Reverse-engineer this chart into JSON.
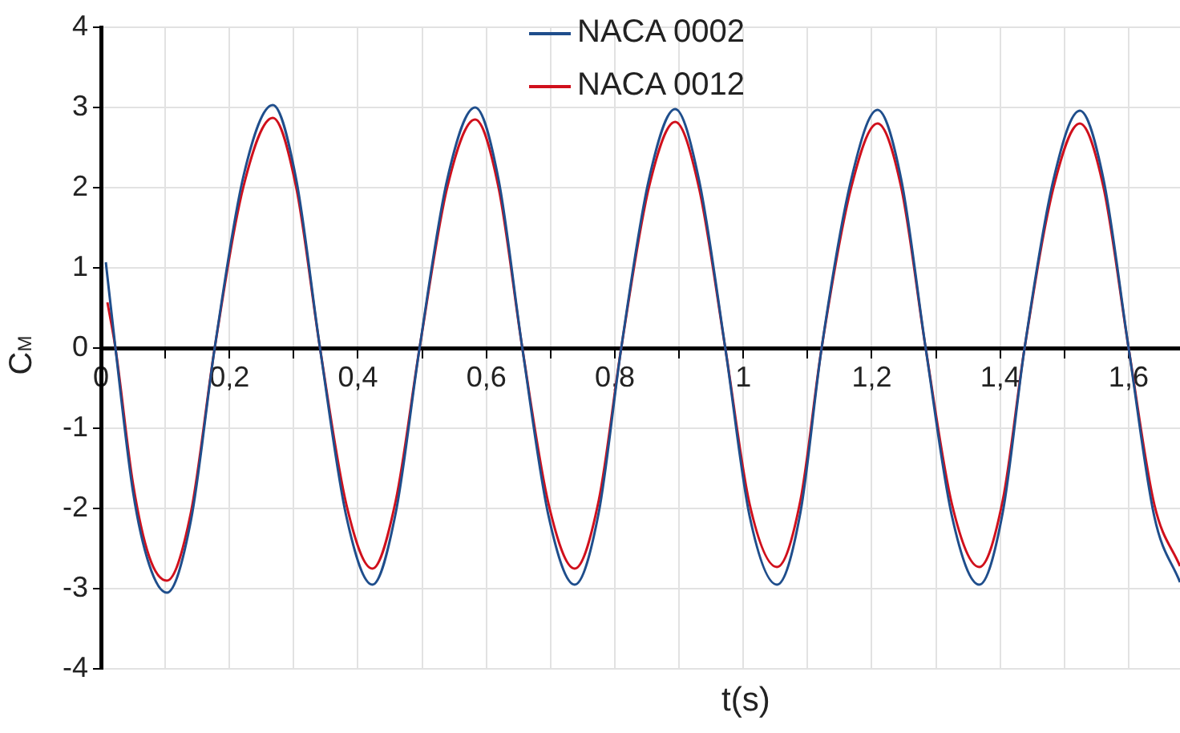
{
  "chart_data": {
    "type": "line",
    "xlabel": "t(s)",
    "ylabel": "C$_{M}$",
    "xlim": [
      0,
      1.68
    ],
    "ylim": [
      -4,
      4
    ],
    "xticks": [
      0,
      {
        "value": 0.1,
        "label": null
      },
      {
        "value": 0.2,
        "label": "0,2"
      },
      {
        "value": 0.3,
        "label": null
      },
      {
        "value": 0.4,
        "label": "0,4"
      },
      {
        "value": 0.5,
        "label": null
      },
      {
        "value": 0.6,
        "label": "0,6"
      },
      {
        "value": 0.7,
        "label": null
      },
      {
        "value": 0.8,
        "label": "0,8"
      },
      {
        "value": 0.9,
        "label": null
      },
      1,
      {
        "value": 1.1,
        "label": null
      },
      {
        "value": 1.2,
        "label": "1,2"
      },
      {
        "value": 1.3,
        "label": null
      },
      {
        "value": 1.4,
        "label": "1,4"
      },
      {
        "value": 1.5,
        "label": null
      },
      {
        "value": 1.6,
        "label": "1,6"
      }
    ],
    "yticks": [
      -4,
      -3,
      -2,
      -1,
      0,
      1,
      2,
      3,
      4
    ],
    "grid": true,
    "legend": "top",
    "marker": "none",
    "line_style": "solid",
    "series": [
      {
        "name": "NACA 0002",
        "color": "#1f4e8c",
        "x": [
          0.0075,
          0.0225,
          0.05,
          0.075,
          0.1025,
          0.14,
          0.177,
          0.222,
          0.2675,
          0.304,
          0.341,
          0.382,
          0.4225,
          0.459,
          0.496,
          0.539,
          0.5825,
          0.619,
          0.656,
          0.697,
          0.7375,
          0.775,
          0.81,
          0.853,
          0.894,
          0.931,
          0.972,
          1.01,
          1.0525,
          1.089,
          1.122,
          1.168,
          1.209,
          1.246,
          1.284,
          1.325,
          1.3675,
          1.404,
          1.438,
          1.483,
          1.524,
          1.561,
          1.6,
          1.64,
          1.68
        ],
        "values": [
          1.07,
          0,
          -1.8,
          -2.7,
          -3.05,
          -2.15,
          0,
          2.15,
          3.03,
          2.1,
          0,
          -2.1,
          -2.95,
          -2.05,
          0,
          2.1,
          3.0,
          2.1,
          0,
          -2.1,
          -2.95,
          -2.05,
          0,
          2.1,
          2.98,
          2.1,
          0,
          -2.1,
          -2.95,
          -2.05,
          0,
          2.1,
          2.97,
          2.1,
          0,
          -2.1,
          -2.95,
          -2.05,
          0,
          2.1,
          2.96,
          2.1,
          0,
          -2.1,
          -2.92
        ]
      },
      {
        "name": "NACA 0012",
        "color": "#d0101c",
        "x": [
          0.01,
          0.0225,
          0.05,
          0.075,
          0.1025,
          0.14,
          0.177,
          0.222,
          0.2675,
          0.304,
          0.341,
          0.382,
          0.4225,
          0.459,
          0.496,
          0.539,
          0.5825,
          0.619,
          0.656,
          0.697,
          0.7375,
          0.775,
          0.81,
          0.853,
          0.894,
          0.931,
          0.972,
          1.01,
          1.0525,
          1.089,
          1.122,
          1.168,
          1.209,
          1.246,
          1.284,
          1.325,
          1.3675,
          1.404,
          1.438,
          1.483,
          1.524,
          1.561,
          1.6,
          1.64,
          1.68
        ],
        "values": [
          0.57,
          0,
          -1.7,
          -2.6,
          -2.9,
          -2.05,
          0,
          2.02,
          2.87,
          2.0,
          0,
          -1.95,
          -2.75,
          -1.9,
          0,
          2.0,
          2.85,
          2.0,
          0,
          -1.95,
          -2.75,
          -1.9,
          0,
          2.0,
          2.82,
          2.0,
          0,
          -1.95,
          -2.73,
          -1.9,
          0,
          2.0,
          2.8,
          2.0,
          0,
          -1.95,
          -2.73,
          -1.9,
          0,
          2.0,
          2.8,
          2.0,
          0,
          -1.95,
          -2.72
        ]
      }
    ]
  }
}
